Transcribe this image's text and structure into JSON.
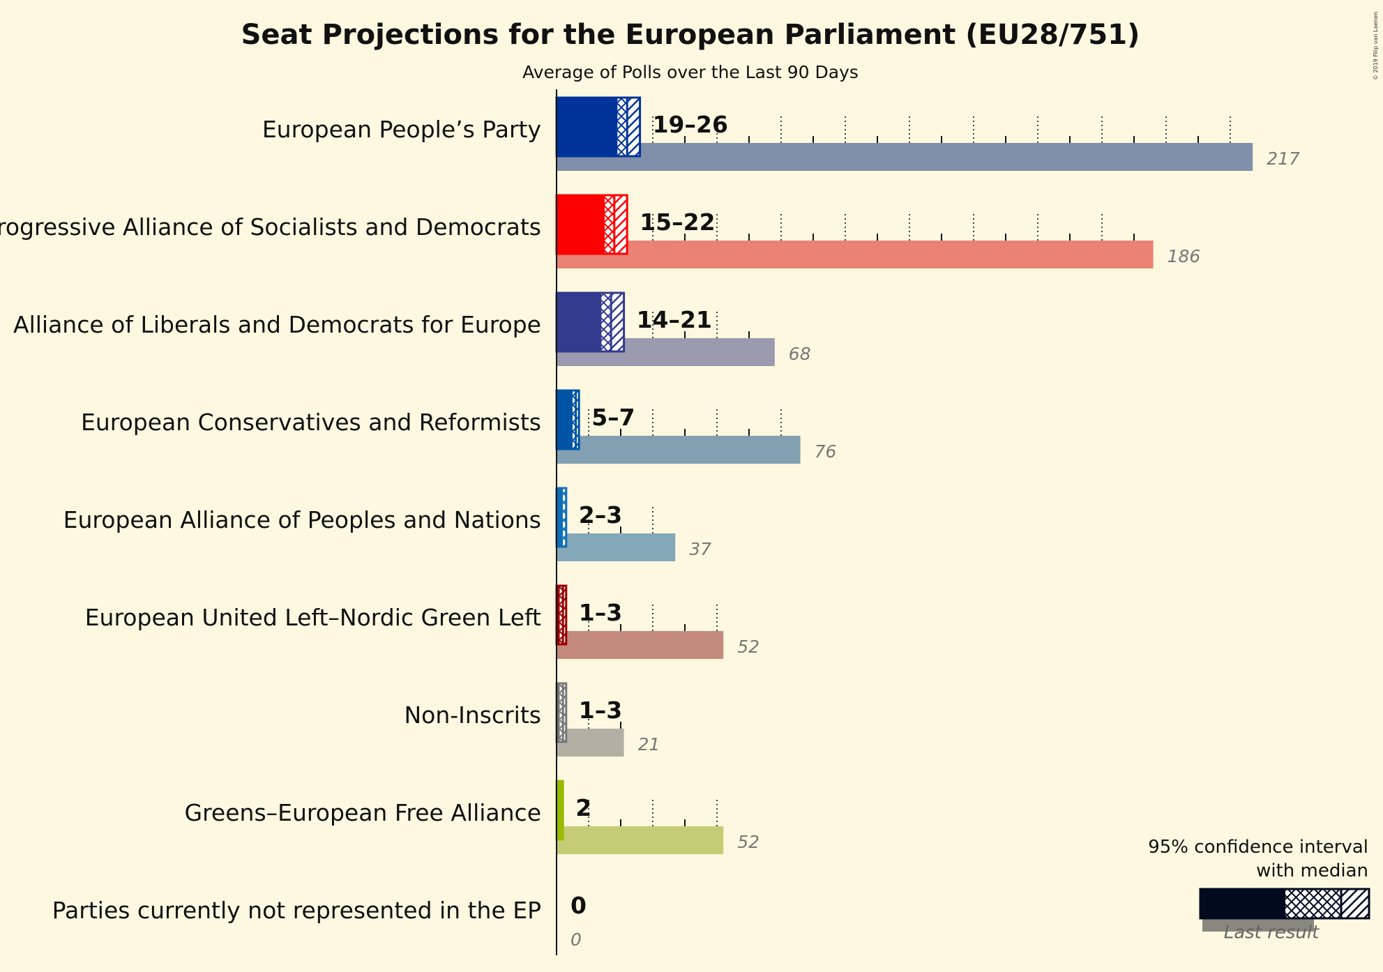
{
  "chart_data": {
    "type": "bar",
    "title": "Seat Projections for the European Parliament (EU28/751)",
    "subtitle": "Average of Polls over the Last 90 Days",
    "copyright": "© 2019 Filip van Laenen",
    "series": [
      {
        "name": "95% confidence interval with median",
        "description": "projection"
      },
      {
        "name": "Last result",
        "description": "last result"
      }
    ],
    "parties": [
      {
        "name": "European People’s Party",
        "low": 19,
        "median": 22,
        "high": 26,
        "range_label": "19–26",
        "last": 217,
        "last_label": "217",
        "color": "#003399",
        "last_color": "#8090aa"
      },
      {
        "name": "Progressive Alliance of Socialists and Democrats",
        "low": 15,
        "median": 18,
        "high": 22,
        "range_label": "15–22",
        "last": 186,
        "last_label": "186",
        "color": "#ff0000",
        "last_color": "#e98275"
      },
      {
        "name": "Alliance of Liberals and Democrats for Europe",
        "low": 14,
        "median": 17,
        "high": 21,
        "range_label": "14–21",
        "last": 68,
        "last_label": "68",
        "color": "#333b8f",
        "last_color": "#9b9aae"
      },
      {
        "name": "European Conservatives and Reformists",
        "low": 5,
        "median": 6,
        "high": 7,
        "range_label": "5–7",
        "last": 76,
        "last_label": "76",
        "color": "#0054a5",
        "last_color": "#82a0b2"
      },
      {
        "name": "European Alliance of Peoples and Nations",
        "low": 2,
        "median": 3,
        "high": 3,
        "range_label": "2–3",
        "last": 37,
        "last_label": "37",
        "color": "#0e6fb8",
        "last_color": "#85a8b9"
      },
      {
        "name": "European United Left–Nordic Green Left",
        "low": 1,
        "median": 2,
        "high": 3,
        "range_label": "1–3",
        "last": 52,
        "last_label": "52",
        "color": "#990000",
        "last_color": "#c58a7e"
      },
      {
        "name": "Non-Inscrits",
        "low": 1,
        "median": 2,
        "high": 3,
        "range_label": "1–3",
        "last": 21,
        "last_label": "21",
        "color": "#777777",
        "last_color": "#b3b0a3"
      },
      {
        "name": "Greens–European Free Alliance",
        "low": 2,
        "median": 2,
        "high": 2,
        "range_label": "2",
        "last": 52,
        "last_label": "52",
        "color": "#99bb00",
        "last_color": "#c6cc76"
      },
      {
        "name": "Parties currently not represented in the EP",
        "low": 0,
        "median": 0,
        "high": 0,
        "range_label": "0",
        "last": 0,
        "last_label": "0",
        "color": "#888888",
        "last_color": "#aaaaaa"
      }
    ],
    "xlim": [
      0,
      217
    ],
    "major_tick_step": 20,
    "minor_tick_step": 10,
    "grid": true,
    "legend": {
      "title_line1": "95% confidence interval",
      "title_line2": "with median",
      "last_result": "Last result",
      "placement": "bottom-right"
    }
  }
}
